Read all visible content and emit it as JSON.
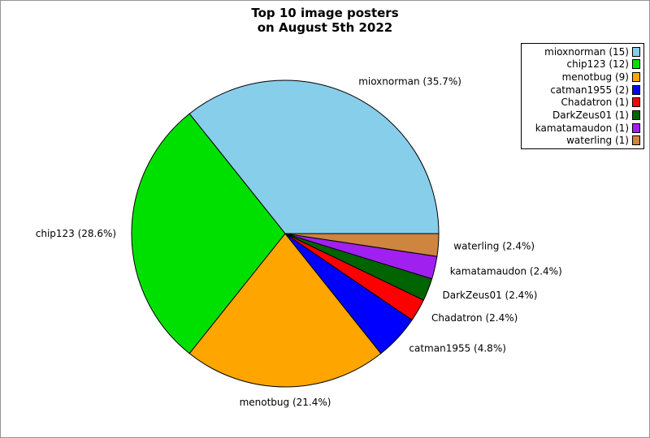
{
  "chart_data": {
    "type": "pie",
    "title": "Top 10 image posters\non August 5th 2022",
    "legend_position": "top-right",
    "start_angle": 0,
    "direction": "counterclockwise",
    "slices": [
      {
        "name": "mioxnorman",
        "count": 15,
        "pct": "35.7%",
        "label": "mioxnorman (35.7%)",
        "legend_label": "mioxnorman (15)",
        "color": "#87CEEB"
      },
      {
        "name": "chip123",
        "count": 12,
        "pct": "28.6%",
        "label": "chip123 (28.6%)",
        "legend_label": "chip123 (12)",
        "color": "#00E000"
      },
      {
        "name": "menotbug",
        "count": 9,
        "pct": "21.4%",
        "label": "menotbug (21.4%)",
        "legend_label": "menotbug (9)",
        "color": "#FFA500"
      },
      {
        "name": "catman1955",
        "count": 2,
        "pct": "4.8%",
        "label": "catman1955 (4.8%)",
        "legend_label": "catman1955 (2)",
        "color": "#0000FF"
      },
      {
        "name": "Chadatron",
        "count": 1,
        "pct": "2.4%",
        "label": "Chadatron (2.4%)",
        "legend_label": "Chadatron (1)",
        "color": "#FF0000"
      },
      {
        "name": "DarkZeus01",
        "count": 1,
        "pct": "2.4%",
        "label": "DarkZeus01 (2.4%)",
        "legend_label": "DarkZeus01 (1)",
        "color": "#006400"
      },
      {
        "name": "kamatamaudon",
        "count": 1,
        "pct": "2.4%",
        "label": "kamatamaudon (2.4%)",
        "legend_label": "kamatamaudon (1)",
        "color": "#A020F0"
      },
      {
        "name": "waterling",
        "count": 1,
        "pct": "2.4%",
        "label": "waterling (2.4%)",
        "legend_label": "waterling (1)",
        "color": "#CD853F"
      }
    ],
    "edge_color": "#000000"
  }
}
